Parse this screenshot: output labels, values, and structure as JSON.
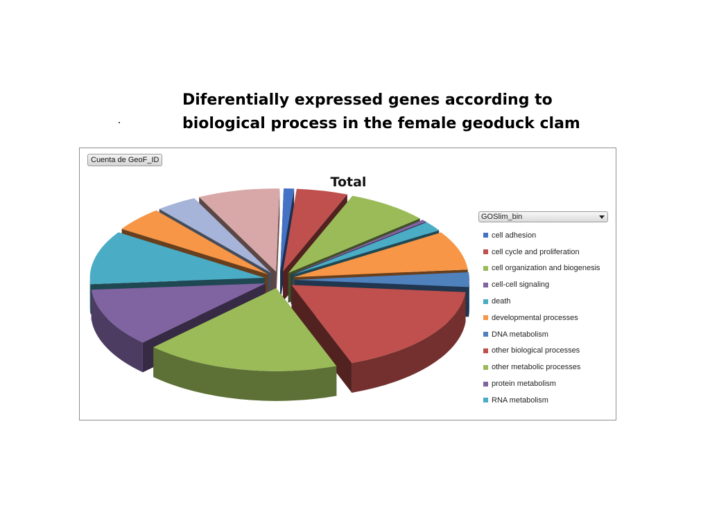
{
  "slide": {
    "title_line1": "Diferentially expressed genes according to",
    "title_line2": "biological process in the female geoduck clam"
  },
  "pivot": {
    "field_button": "Cuenta de GeoF_ID",
    "legend_field": "GOSlim_bin"
  },
  "chart_data": {
    "type": "pie",
    "title": "Total",
    "legend_position": "right",
    "categories": [
      "cell adhesion",
      "cell cycle and proliferation",
      "cell organization and biogenesis",
      "cell-cell signaling",
      "death",
      "developmental processes",
      "DNA metabolism",
      "other biological processes",
      "other metabolic processes",
      "protein metabolism",
      "RNA metabolism",
      "",
      "",
      ""
    ],
    "values": [
      1,
      5,
      8,
      0.5,
      2,
      8,
      3,
      19,
      19,
      12,
      11,
      5,
      4,
      8
    ],
    "colors": [
      "#4472c4",
      "#c0504d",
      "#9bbb59",
      "#8064a2",
      "#4bacc6",
      "#f79646",
      "#4f81bd",
      "#c0504d",
      "#9bbb59",
      "#8064a2",
      "#4bacc6",
      "#f79646",
      "#a5b4d8",
      "#d8a7a7"
    ]
  }
}
